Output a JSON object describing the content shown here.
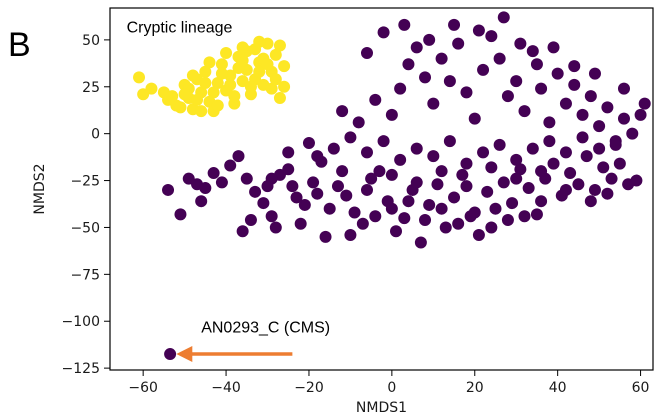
{
  "panel_letter": "B",
  "chart_data": {
    "type": "scatter",
    "xlabel": "NMDS1",
    "ylabel": "NMDS2",
    "xlim": [
      -68,
      63
    ],
    "ylim": [
      -126,
      67
    ],
    "xticks": [
      -60,
      -40,
      -20,
      0,
      20,
      40,
      60
    ],
    "yticks": [
      50,
      25,
      0,
      -25,
      -50,
      -75,
      -100,
      -125
    ],
    "xtick_labels": [
      "−60",
      "−40",
      "−20",
      "0",
      "20",
      "40",
      "60"
    ],
    "ytick_labels": [
      "50",
      "25",
      "0",
      "−25",
      "−50",
      "−75",
      "−100",
      "−125"
    ],
    "grid": false,
    "series": [
      {
        "color": "#fde725",
        "points": [
          [
            -61,
            30
          ],
          [
            -58,
            24
          ],
          [
            -60,
            21
          ],
          [
            -55,
            22
          ],
          [
            -54,
            18
          ],
          [
            -52,
            15
          ],
          [
            -50,
            26
          ],
          [
            -49,
            19
          ],
          [
            -48,
            13
          ],
          [
            -47,
            29
          ],
          [
            -46,
            22
          ],
          [
            -45,
            33
          ],
          [
            -44,
            17
          ],
          [
            -43,
            12
          ],
          [
            -42,
            27
          ],
          [
            -41,
            37
          ],
          [
            -40,
            23
          ],
          [
            -39,
            31
          ],
          [
            -38,
            16
          ],
          [
            -37,
            41
          ],
          [
            -36,
            28
          ],
          [
            -35,
            34
          ],
          [
            -34,
            21
          ],
          [
            -33,
            45
          ],
          [
            -32,
            38
          ],
          [
            -31,
            26
          ],
          [
            -30,
            48
          ],
          [
            -29,
            33
          ],
          [
            -28,
            42
          ],
          [
            -27,
            19
          ],
          [
            -26,
            36
          ],
          [
            -27,
            47
          ],
          [
            -29,
            24
          ],
          [
            -31,
            40
          ],
          [
            -33,
            29
          ],
          [
            -35,
            44
          ],
          [
            -37,
            35
          ],
          [
            -39,
            26
          ],
          [
            -41,
            32
          ],
          [
            -43,
            22
          ],
          [
            -45,
            27
          ],
          [
            -47,
            18
          ],
          [
            -49,
            24
          ],
          [
            -51,
            14
          ],
          [
            -53,
            20
          ],
          [
            -44,
            38
          ],
          [
            -40,
            43
          ],
          [
            -36,
            39
          ],
          [
            -32,
            33
          ],
          [
            -28,
            29
          ],
          [
            -26,
            25
          ],
          [
            -30,
            37
          ],
          [
            -34,
            25
          ],
          [
            -38,
            20
          ],
          [
            -42,
            15
          ],
          [
            -46,
            12
          ],
          [
            -50,
            21
          ],
          [
            -48,
            31
          ],
          [
            -36,
            46
          ],
          [
            -32,
            49
          ]
        ]
      },
      {
        "color": "#440154",
        "points": [
          [
            -54,
            -30
          ],
          [
            -51,
            -43
          ],
          [
            -49,
            -24
          ],
          [
            -47,
            -27
          ],
          [
            -45,
            -29
          ],
          [
            -43,
            -21
          ],
          [
            -39,
            -17
          ],
          [
            -37,
            -12
          ],
          [
            -35,
            -24
          ],
          [
            -33,
            -31
          ],
          [
            -31,
            -37
          ],
          [
            -29,
            -44
          ],
          [
            -27,
            -22
          ],
          [
            -25,
            -19
          ],
          [
            -23,
            -34
          ],
          [
            -21,
            -38
          ],
          [
            -19,
            -26
          ],
          [
            -17,
            -15
          ],
          [
            -15,
            -40
          ],
          [
            -13,
            -28
          ],
          [
            -11,
            -33
          ],
          [
            -9,
            -42
          ],
          [
            -7,
            -48
          ],
          [
            -5,
            -24
          ],
          [
            -3,
            -20
          ],
          [
            -1,
            -36
          ],
          [
            1,
            -52
          ],
          [
            3,
            -45
          ],
          [
            5,
            -30
          ],
          [
            7,
            -58
          ],
          [
            9,
            -38
          ],
          [
            11,
            -27
          ],
          [
            13,
            -50
          ],
          [
            15,
            -34
          ],
          [
            17,
            -22
          ],
          [
            19,
            -44
          ],
          [
            21,
            -54
          ],
          [
            23,
            -31
          ],
          [
            25,
            -40
          ],
          [
            27,
            -26
          ],
          [
            29,
            -37
          ],
          [
            31,
            -19
          ],
          [
            33,
            -29
          ],
          [
            35,
            -43
          ],
          [
            37,
            -24
          ],
          [
            39,
            -16
          ],
          [
            41,
            -33
          ],
          [
            43,
            -21
          ],
          [
            45,
            -27
          ],
          [
            47,
            -12
          ],
          [
            49,
            -30
          ],
          [
            51,
            -18
          ],
          [
            53,
            -24
          ],
          [
            55,
            -16
          ],
          [
            57,
            -27
          ],
          [
            59,
            -25
          ],
          [
            -20,
            -5
          ],
          [
            -18,
            -12
          ],
          [
            -14,
            -8
          ],
          [
            -10,
            -2
          ],
          [
            -6,
            -10
          ],
          [
            -2,
            -4
          ],
          [
            2,
            -14
          ],
          [
            6,
            -8
          ],
          [
            10,
            -12
          ],
          [
            14,
            -4
          ],
          [
            18,
            -16
          ],
          [
            22,
            -10
          ],
          [
            26,
            -6
          ],
          [
            30,
            -14
          ],
          [
            34,
            -8
          ],
          [
            38,
            -4
          ],
          [
            42,
            -10
          ],
          [
            46,
            -2
          ],
          [
            50,
            -8
          ],
          [
            54,
            -4
          ],
          [
            -34,
            -46
          ],
          [
            -28,
            -50
          ],
          [
            -22,
            -48
          ],
          [
            -16,
            -55
          ],
          [
            -10,
            -54
          ],
          [
            -4,
            -44
          ],
          [
            0,
            -40
          ],
          [
            4,
            -36
          ],
          [
            8,
            -46
          ],
          [
            12,
            -40
          ],
          [
            16,
            -48
          ],
          [
            20,
            -42
          ],
          [
            24,
            -50
          ],
          [
            28,
            -46
          ],
          [
            32,
            -44
          ],
          [
            36,
            -36
          ],
          [
            -12,
            12
          ],
          [
            -8,
            6
          ],
          [
            -4,
            18
          ],
          [
            0,
            10
          ],
          [
            2,
            24
          ],
          [
            4,
            37
          ],
          [
            6,
            46
          ],
          [
            8,
            30
          ],
          [
            10,
            16
          ],
          [
            12,
            40
          ],
          [
            14,
            28
          ],
          [
            16,
            48
          ],
          [
            18,
            22
          ],
          [
            20,
            8
          ],
          [
            22,
            34
          ],
          [
            24,
            52
          ],
          [
            26,
            40
          ],
          [
            28,
            20
          ],
          [
            30,
            28
          ],
          [
            32,
            12
          ],
          [
            34,
            44
          ],
          [
            36,
            24
          ],
          [
            38,
            6
          ],
          [
            40,
            32
          ],
          [
            42,
            16
          ],
          [
            44,
            26
          ],
          [
            46,
            10
          ],
          [
            48,
            20
          ],
          [
            50,
            4
          ],
          [
            52,
            14
          ],
          [
            54,
            -6
          ],
          [
            56,
            8
          ],
          [
            58,
            0
          ],
          [
            60,
            10
          ],
          [
            -6,
            43
          ],
          [
            -2,
            54
          ],
          [
            3,
            58
          ],
          [
            9,
            50
          ],
          [
            15,
            58
          ],
          [
            21,
            55
          ],
          [
            27,
            62
          ],
          [
            31,
            48
          ],
          [
            35,
            37
          ],
          [
            39,
            46
          ],
          [
            44,
            36
          ],
          [
            49,
            32
          ],
          [
            56,
            24
          ],
          [
            61,
            16
          ],
          [
            -25,
            -10
          ],
          [
            -29,
            -24
          ],
          [
            -41,
            -26
          ],
          [
            -46,
            -36
          ],
          [
            -36,
            -52
          ],
          [
            -30,
            -28
          ],
          [
            -24,
            -28
          ],
          [
            -18,
            -32
          ],
          [
            -12,
            -20
          ],
          [
            -6,
            -30
          ],
          [
            0,
            -22
          ],
          [
            6,
            -26
          ],
          [
            12,
            -20
          ],
          [
            18,
            -28
          ],
          [
            24,
            -18
          ],
          [
            30,
            -24
          ],
          [
            36,
            -20
          ],
          [
            42,
            -30
          ],
          [
            48,
            -36
          ],
          [
            52,
            -32
          ]
        ]
      },
      {
        "color": "#440154",
        "points": [
          [
            -53.5,
            -117.5
          ]
        ]
      }
    ],
    "annotations": [
      {
        "text": "Cryptic lineage",
        "x": -64,
        "y": 54
      },
      {
        "text": "AN0293_C (CMS)",
        "x": -46,
        "y": -106
      }
    ],
    "arrow": {
      "from": [
        -24,
        -117.5
      ],
      "to": [
        -52,
        -117.5
      ],
      "color": "#ed7d31"
    }
  }
}
